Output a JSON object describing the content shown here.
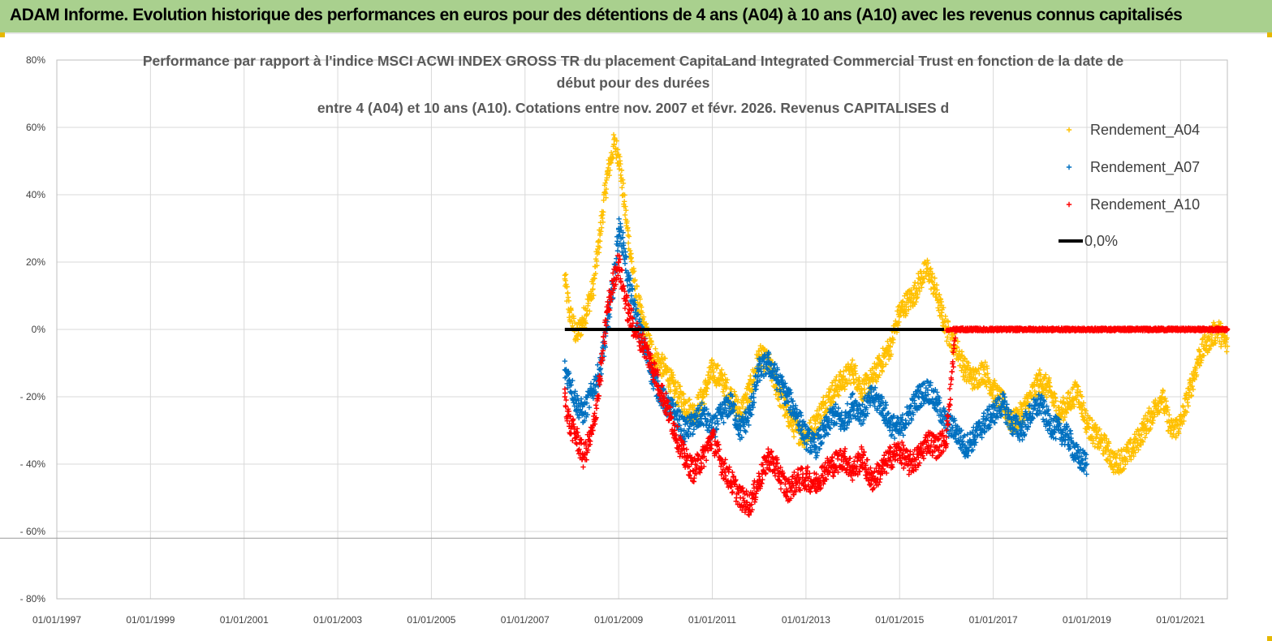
{
  "banner": {
    "title": "ADAM Informe. Evolution historique des performances en euros pour des détentions de 4 ans (A04) à 10 ans (A10) avec les revenus connus capitalisés"
  },
  "colors": {
    "banner_bg": "#a9d08e",
    "a04": "#ffc000",
    "a07": "#0070c0",
    "a10": "#ff0000",
    "zero_line": "#000000",
    "grid": "#d9d9d9"
  },
  "chart_data": {
    "type": "scatter",
    "title_lines": [
      "Performance par rapport à l'indice MSCI ACWI INDEX GROSS TR  du placement CapitaLand Integrated Commercial Trust en fonction de la date de",
      "début pour des durées",
      "entre 4 (A04) et 10 ans (A10). Cotations entre nov. 2007 et févr. 2026. Revenus CAPITALISES d"
    ],
    "xlabel": "",
    "ylabel": "",
    "x_range": [
      1997.0,
      2022.0
    ],
    "ylim": [
      -80,
      80
    ],
    "y_ticks": [
      80,
      60,
      40,
      20,
      0,
      -20,
      -40,
      -60,
      -80
    ],
    "y_tick_labels": [
      "80%",
      "60%",
      "40%",
      "20%",
      "0%",
      "- 20%",
      "- 40%",
      "- 60%",
      "- 80%"
    ],
    "x_ticks": [
      1997,
      1999,
      2001,
      2003,
      2005,
      2007,
      2009,
      2011,
      2013,
      2015,
      2017,
      2019,
      2021
    ],
    "x_tick_labels": [
      "01/01/1997",
      "01/01/1999",
      "01/01/2001",
      "01/01/2003",
      "01/01/2005",
      "01/01/2007",
      "01/01/2009",
      "01/01/2011",
      "01/01/2013",
      "01/01/2015",
      "01/01/2017",
      "01/01/2019",
      "01/01/2021"
    ],
    "grid": true,
    "legend_position": "top-right",
    "series": [
      {
        "name": "Rendement_A04",
        "color": "#ffc000",
        "marker": "+",
        "x": [
          2007.85,
          2007.95,
          2008.1,
          2008.25,
          2008.45,
          2008.6,
          2008.75,
          2008.9,
          2009.0,
          2009.1,
          2009.2,
          2009.35,
          2009.55,
          2009.75,
          2010.0,
          2010.2,
          2010.4,
          2010.6,
          2010.8,
          2011.0,
          2011.2,
          2011.4,
          2011.6,
          2011.8,
          2012.0,
          2012.2,
          2012.4,
          2012.6,
          2012.8,
          2013.0,
          2013.2,
          2013.4,
          2013.6,
          2013.8,
          2014.0,
          2014.2,
          2014.4,
          2014.6,
          2014.8,
          2015.0,
          2015.15,
          2015.3,
          2015.45,
          2015.6,
          2015.75,
          2015.9,
          2016.0,
          2016.2,
          2016.4,
          2016.6,
          2016.8,
          2017.0,
          2017.2,
          2017.4,
          2017.6,
          2017.8,
          2018.0,
          2018.2,
          2018.4,
          2018.6,
          2018.8,
          2019.0,
          2019.2,
          2019.4,
          2019.6,
          2019.8,
          2020.0,
          2020.2,
          2020.4,
          2020.6,
          2020.8,
          2021.0,
          2021.2,
          2021.4,
          2021.6,
          2021.8,
          2022.0
        ],
        "y": [
          15,
          5,
          -2,
          3,
          12,
          28,
          45,
          55,
          52,
          40,
          28,
          12,
          0,
          -8,
          -12,
          -18,
          -22,
          -25,
          -20,
          -12,
          -15,
          -20,
          -25,
          -18,
          -8,
          -10,
          -18,
          -25,
          -30,
          -32,
          -28,
          -22,
          -18,
          -15,
          -12,
          -18,
          -15,
          -10,
          -5,
          5,
          8,
          10,
          15,
          18,
          12,
          5,
          0,
          -5,
          -12,
          -15,
          -12,
          -18,
          -22,
          -28,
          -25,
          -20,
          -15,
          -18,
          -25,
          -22,
          -18,
          -28,
          -32,
          -35,
          -40,
          -38,
          -35,
          -30,
          -25,
          -20,
          -30,
          -28,
          -18,
          -8,
          -3,
          0,
          -5
        ]
      },
      {
        "name": "Rendement_A07",
        "color": "#0070c0",
        "marker": "+",
        "x": [
          2007.85,
          2007.95,
          2008.1,
          2008.25,
          2008.45,
          2008.6,
          2008.75,
          2008.9,
          2009.0,
          2009.1,
          2009.2,
          2009.35,
          2009.55,
          2009.75,
          2010.0,
          2010.2,
          2010.4,
          2010.6,
          2010.8,
          2011.0,
          2011.2,
          2011.4,
          2011.6,
          2011.8,
          2012.0,
          2012.2,
          2012.4,
          2012.6,
          2012.8,
          2013.0,
          2013.2,
          2013.4,
          2013.6,
          2013.8,
          2014.0,
          2014.2,
          2014.4,
          2014.6,
          2014.8,
          2015.0,
          2015.2,
          2015.4,
          2015.6,
          2015.8,
          2016.0,
          2016.2,
          2016.4,
          2016.6,
          2016.8,
          2017.0,
          2017.2,
          2017.4,
          2017.6,
          2017.8,
          2018.0,
          2018.2,
          2018.4,
          2018.6,
          2018.8,
          2019.0
        ],
        "y": [
          -12,
          -15,
          -22,
          -25,
          -18,
          -12,
          0,
          15,
          30,
          25,
          15,
          5,
          -5,
          -15,
          -22,
          -25,
          -30,
          -28,
          -25,
          -30,
          -25,
          -22,
          -30,
          -25,
          -12,
          -10,
          -15,
          -20,
          -25,
          -32,
          -35,
          -30,
          -25,
          -28,
          -22,
          -25,
          -20,
          -22,
          -28,
          -30,
          -25,
          -20,
          -18,
          -22,
          -28,
          -30,
          -35,
          -32,
          -28,
          -25,
          -22,
          -28,
          -30,
          -25,
          -22,
          -28,
          -30,
          -32,
          -38,
          -40
        ]
      },
      {
        "name": "Rendement_A10",
        "color": "#ff0000",
        "marker": "+",
        "x": [
          2007.85,
          2007.95,
          2008.1,
          2008.25,
          2008.45,
          2008.6,
          2008.75,
          2008.9,
          2009.0,
          2009.1,
          2009.2,
          2009.35,
          2009.55,
          2009.75,
          2010.0,
          2010.2,
          2010.4,
          2010.6,
          2010.8,
          2011.0,
          2011.2,
          2011.4,
          2011.6,
          2011.8,
          2012.0,
          2012.2,
          2012.4,
          2012.6,
          2012.8,
          2013.0,
          2013.2,
          2013.4,
          2013.6,
          2013.8,
          2014.0,
          2014.2,
          2014.4,
          2014.6,
          2014.8,
          2015.0,
          2015.2,
          2015.4,
          2015.6,
          2015.8,
          2016.0,
          2016.2,
          2016.6,
          2017.0,
          2017.5,
          2018.0,
          2018.5,
          2019.0,
          2019.5,
          2020.0,
          2020.5,
          2021.0,
          2021.5,
          2022.0
        ],
        "y": [
          -20,
          -28,
          -32,
          -38,
          -30,
          -15,
          5,
          15,
          20,
          12,
          5,
          0,
          -5,
          -12,
          -22,
          -30,
          -38,
          -42,
          -38,
          -32,
          -40,
          -45,
          -50,
          -52,
          -45,
          -38,
          -42,
          -48,
          -45,
          -44,
          -46,
          -42,
          -40,
          -38,
          -42,
          -38,
          -45,
          -42,
          -38,
          -36,
          -40,
          -38,
          -33,
          -35,
          -32,
          0,
          0,
          0,
          0,
          0,
          0,
          0,
          0,
          0,
          0,
          0,
          0,
          0
        ]
      },
      {
        "name": "0,0%",
        "color": "#000000",
        "marker": "line",
        "x": [
          2007.85,
          2015.95
        ],
        "y": [
          0,
          0
        ]
      }
    ]
  }
}
